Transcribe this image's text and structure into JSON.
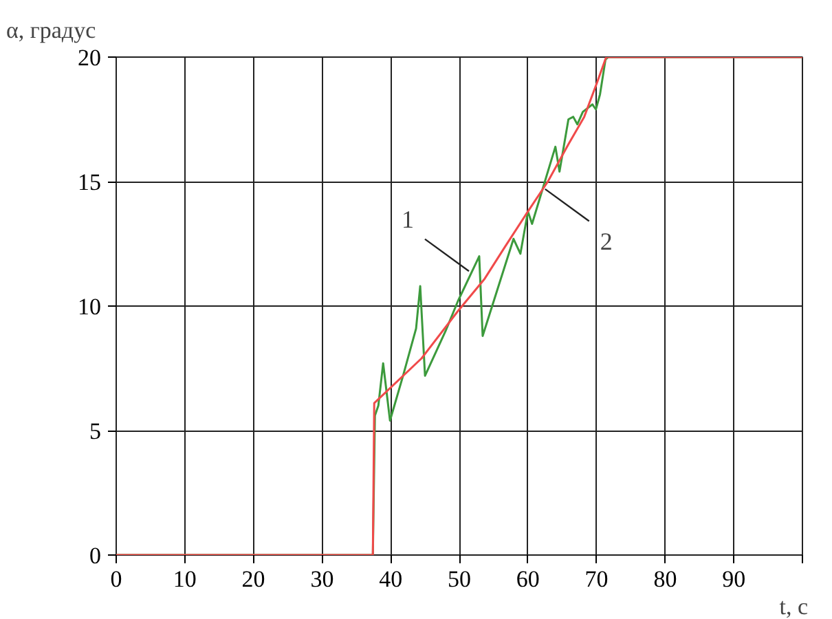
{
  "chart_data": {
    "type": "line",
    "xlabel": "t, c",
    "ylabel": "α, градус",
    "xlim": [
      0,
      100
    ],
    "ylim": [
      0,
      20
    ],
    "xticks": [
      0,
      10,
      20,
      30,
      40,
      50,
      60,
      70,
      80,
      90,
      {
        "value": 100,
        "label": null
      }
    ],
    "yticks": [
      0,
      5,
      10,
      15,
      20
    ],
    "grid": true,
    "marker": "none",
    "line_style": "solid",
    "series": [
      {
        "color": "#3c9a3c",
        "x": [
          0,
          37.4,
          37.7,
          38.2,
          38.9,
          39.9,
          41.8,
          43.7,
          44.3,
          45.0,
          48.0,
          49.8,
          52.9,
          53.4,
          57.9,
          58.9,
          60.0,
          60.6,
          64.0,
          64.6,
          65.9,
          66.6,
          67.2,
          68.0,
          69.4,
          69.9,
          70.5,
          71.3,
          71.7,
          100
        ],
        "values": [
          0,
          0,
          5.6,
          6.0,
          7.7,
          5.4,
          7.2,
          9.1,
          10.8,
          7.2,
          9.0,
          10.2,
          12.0,
          8.8,
          12.7,
          12.1,
          13.8,
          13.3,
          16.4,
          15.4,
          17.5,
          17.6,
          17.3,
          17.8,
          18.1,
          17.9,
          18.5,
          19.9,
          20,
          20
        ]
      },
      {
        "color": "#f04a4a",
        "x": [
          0,
          37.4,
          37.6,
          44.5,
          49.8,
          53.7,
          56.7,
          60.0,
          62.9,
          65.9,
          68.2,
          70.1,
          71.4,
          100
        ],
        "values": [
          0,
          0,
          6.1,
          7.9,
          9.8,
          11.1,
          12.4,
          13.8,
          15.0,
          16.5,
          17.6,
          19.0,
          20,
          20
        ]
      }
    ],
    "annotations": [
      {
        "text": "1",
        "x": 51.4,
        "y": 11.4
      },
      {
        "text": "2",
        "x": 62.5,
        "y": 14.7
      }
    ]
  }
}
